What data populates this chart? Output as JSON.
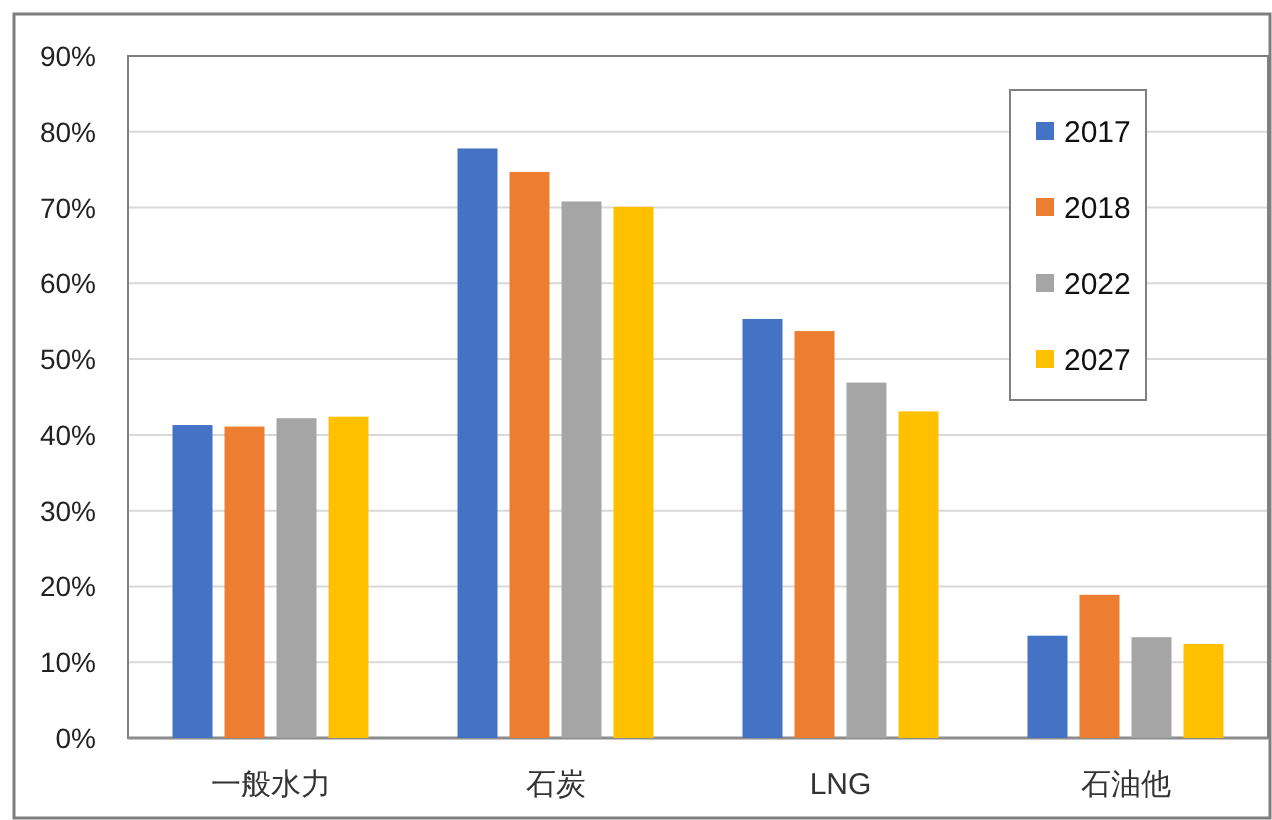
{
  "chart_data": {
    "type": "bar",
    "categories": [
      "一般水力",
      "石炭",
      "LNG",
      "石油他"
    ],
    "series": [
      {
        "name": "2017",
        "color": "#4472c4",
        "values": [
          41.3,
          77.8,
          55.3,
          13.5
        ]
      },
      {
        "name": "2018",
        "color": "#ed7d31",
        "values": [
          41.1,
          74.7,
          53.7,
          18.9
        ]
      },
      {
        "name": "2022",
        "color": "#a5a5a5",
        "values": [
          42.2,
          70.8,
          46.9,
          13.3
        ]
      },
      {
        "name": "2027",
        "color": "#ffc000",
        "values": [
          42.4,
          70.1,
          43.1,
          12.4
        ]
      }
    ],
    "ylim": [
      0,
      90
    ],
    "yticks": [
      {
        "value": 0,
        "label": "0%"
      },
      {
        "value": 10,
        "label": "10%"
      },
      {
        "value": 20,
        "label": "20%"
      },
      {
        "value": 30,
        "label": "30%"
      },
      {
        "value": 40,
        "label": "40%"
      },
      {
        "value": 50,
        "label": "50%"
      },
      {
        "value": 60,
        "label": "60%"
      },
      {
        "value": 70,
        "label": "70%"
      },
      {
        "value": 80,
        "label": "80%"
      },
      {
        "value": 90,
        "label": "90%"
      }
    ],
    "grid": "y",
    "legend": "top right"
  }
}
